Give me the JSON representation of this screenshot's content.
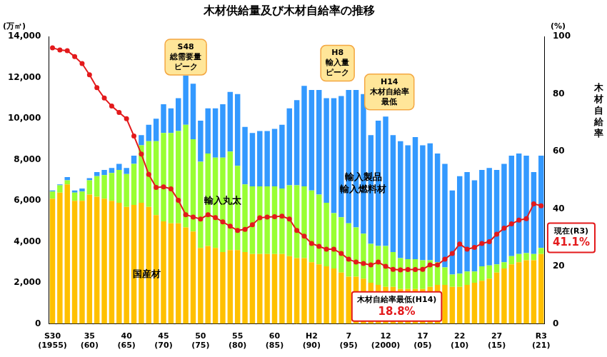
{
  "chart_data": {
    "type": "bar",
    "title": "木材供給量及び木材自給率の推移",
    "y_label": "(万㎥)",
    "y2_label": "(%)",
    "categories": [
      "S30\n(1955)",
      null,
      null,
      null,
      null,
      "35\n(60)",
      null,
      null,
      null,
      null,
      "40\n(65)",
      null,
      null,
      null,
      null,
      "45\n(70)",
      null,
      null,
      null,
      null,
      "50\n(75)",
      null,
      null,
      null,
      null,
      "55\n(80)",
      null,
      null,
      null,
      null,
      "60\n(85)",
      null,
      null,
      null,
      null,
      "H2\n(90)",
      null,
      null,
      null,
      null,
      "7\n(95)",
      null,
      null,
      null,
      null,
      "12\n(2000)",
      null,
      null,
      null,
      null,
      "17\n(05)",
      null,
      null,
      null,
      null,
      "22\n(10)",
      null,
      null,
      null,
      null,
      "27\n(15)",
      null,
      null,
      null,
      null,
      null,
      "R3\n(21)"
    ],
    "series": [
      {
        "name": "国産材",
        "color": "#FFC000",
        "values": [
          6100,
          6400,
          6800,
          6000,
          6000,
          6300,
          6200,
          6100,
          6000,
          5900,
          5700,
          5800,
          5900,
          5700,
          5300,
          5000,
          4900,
          4900,
          4700,
          4500,
          3700,
          3800,
          3700,
          3500,
          3600,
          3600,
          3500,
          3400,
          3400,
          3400,
          3400,
          3400,
          3300,
          3200,
          3200,
          3000,
          2900,
          2800,
          2700,
          2500,
          2300,
          2300,
          2200,
          2000,
          1900,
          1800,
          1800,
          1700,
          1700,
          1700,
          1700,
          1800,
          1900,
          1900,
          1800,
          1800,
          1900,
          2000,
          2100,
          2200,
          2500,
          2700,
          2900,
          3000,
          3100,
          3100,
          3400
        ]
      },
      {
        "name": "輸入丸太",
        "color": "#99FF33",
        "values": [
          350,
          350,
          200,
          400,
          450,
          700,
          1000,
          1150,
          1350,
          1600,
          1600,
          2000,
          2800,
          3200,
          3600,
          4300,
          4400,
          4500,
          5000,
          4500,
          4200,
          4500,
          4400,
          4600,
          4800,
          4100,
          3300,
          3300,
          3300,
          3300,
          3300,
          3200,
          3450,
          3550,
          3500,
          3500,
          3400,
          3100,
          2700,
          2700,
          2600,
          2400,
          2200,
          1900,
          1900,
          2000,
          1700,
          1500,
          1450,
          1450,
          1400,
          1300,
          1100,
          850,
          600,
          650,
          650,
          550,
          700,
          650,
          400,
          300,
          400,
          400,
          350,
          300,
          300
        ]
      },
      {
        "name": "輸入製品\n輸入燃料材",
        "color": "#3399FF",
        "values": [
          50,
          50,
          150,
          100,
          150,
          100,
          200,
          250,
          250,
          300,
          300,
          400,
          500,
          800,
          1100,
          1400,
          1200,
          1600,
          2400,
          2700,
          2000,
          2200,
          2400,
          2600,
          2900,
          3500,
          2800,
          2600,
          2700,
          2700,
          2800,
          3100,
          3750,
          4150,
          4900,
          4900,
          5100,
          5100,
          5600,
          5900,
          6500,
          6700,
          6800,
          5300,
          6100,
          6300,
          5700,
          5700,
          5550,
          5950,
          5600,
          5700,
          5300,
          5050,
          4100,
          4750,
          4850,
          4450,
          4700,
          4750,
          4600,
          4800,
          4900,
          4900,
          4750,
          4000,
          4500
        ]
      },
      {
        "name": "木材自給率",
        "type": "line",
        "axis": "y2",
        "color": "#E31A1C",
        "marker": "circle",
        "values": [
          96.1,
          95.3,
          95.1,
          93.0,
          90.6,
          86.7,
          82.2,
          78.6,
          75.8,
          73.6,
          71.4,
          65.4,
          59.1,
          52.0,
          47.5,
          47.7,
          47.0,
          43.0,
          38.0,
          37.2,
          36.5,
          38.0,
          37.0,
          35.5,
          34.0,
          32.5,
          32.9,
          34.5,
          36.9,
          37.2,
          37.3,
          37.5,
          36.5,
          32.5,
          30.5,
          28.0,
          27.0,
          26.0,
          26.0,
          24.5,
          22.5,
          21.5,
          21.0,
          20.5,
          21.5,
          20.0,
          19.0,
          18.8,
          18.9,
          18.9,
          19.0,
          20.5,
          20.5,
          22.5,
          24.5,
          27.8,
          26.0,
          26.6,
          28.0,
          28.6,
          31.2,
          33.3,
          34.8,
          36.1,
          36.6,
          41.8,
          41.1
        ]
      }
    ],
    "annotations": [
      {
        "text": "S48\n総需要量\nピーク"
      },
      {
        "text": "H8\n輸入量\nピーク"
      },
      {
        "text": "H14\n木材自給率\n最低"
      },
      {
        "text": "木材自給率最低(H14)\n18.8%"
      },
      {
        "text": "現在(R3)\n41.1%"
      }
    ],
    "ylim": [
      0,
      14000
    ],
    "yticks": [
      0,
      {
        "value": 2000,
        "label": "2,000"
      },
      {
        "value": 4000,
        "label": "4,000"
      },
      {
        "value": 6000,
        "label": "6,000"
      },
      {
        "value": 8000,
        "label": "8,000"
      },
      {
        "value": 10000,
        "label": "10,000"
      },
      {
        "value": 12000,
        "label": "12,000"
      },
      {
        "value": 14000,
        "label": "14,000"
      }
    ],
    "y2lim": [
      0,
      100
    ],
    "y2ticks": [
      0,
      20,
      40,
      60,
      80,
      100
    ],
    "stacked": true,
    "grid": false
  }
}
